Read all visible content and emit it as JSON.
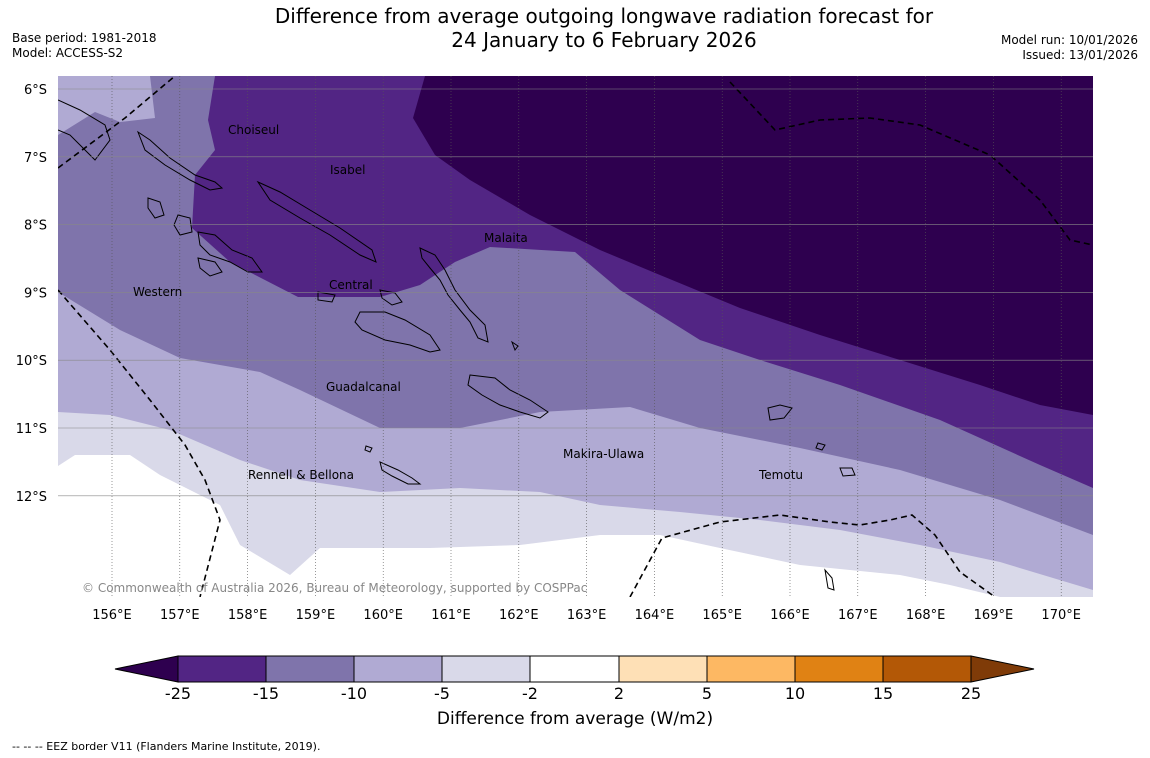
{
  "title": {
    "line1": "Difference from average outgoing longwave radiation forecast for",
    "line2": "24 January to 6 February 2026"
  },
  "meta_left": {
    "base_period": "Base period: 1981-2018",
    "model": "Model: ACCESS-S2"
  },
  "meta_right": {
    "model_run": "Model run: 10/01/2026",
    "issued": "Issued: 13/01/2026"
  },
  "map": {
    "lon_labels": [
      "156°E",
      "157°E",
      "158°E",
      "159°E",
      "160°E",
      "161°E",
      "162°E",
      "163°E",
      "164°E",
      "165°E",
      "166°E",
      "167°E",
      "168°E",
      "169°E",
      "170°E"
    ],
    "lat_labels": [
      "6°S",
      "7°S",
      "8°S",
      "9°S",
      "10°S",
      "11°S",
      "12°S"
    ],
    "regions": [
      "Choiseul",
      "Isabel",
      "Malaita",
      "Western",
      "Central",
      "Guadalcanal",
      "Makira-Ulawa",
      "Rennell & Bellona",
      "Temotu"
    ],
    "copyright": "© Commonwealth of Australia 2026, Bureau of Meteorology, supported by COSPPac"
  },
  "legend": {
    "colors": [
      "#2e004f",
      "#522584",
      "#7f74ab",
      "#b0aad3",
      "#d9d9e9",
      "#ffffff",
      "#fee0b6",
      "#fdb863",
      "#e08214",
      "#b35806",
      "#7f3b08"
    ],
    "ticks": [
      "-25",
      "-15",
      "-10",
      "-5",
      "-2",
      "2",
      "5",
      "10",
      "15",
      "25"
    ],
    "title": "Difference from average (W/m2)"
  },
  "footnote": "--  --  -- EEZ border V11 (Flanders Marine Institute, 2019)."
}
